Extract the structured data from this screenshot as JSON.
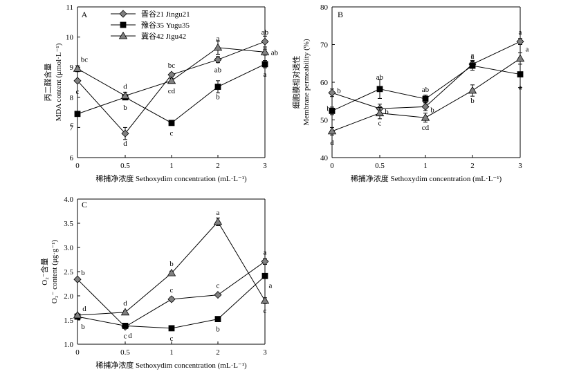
{
  "legend": [
    {
      "label": "晋谷21 Jingu21",
      "marker": "diamond",
      "fill": "#808080"
    },
    {
      "label": "豫谷35 Yugu35",
      "marker": "square",
      "fill": "#000000"
    },
    {
      "label": "冀谷42 Jigu42",
      "marker": "triangle",
      "fill": "#808080"
    }
  ],
  "chart_data": [
    {
      "type": "line",
      "panel": "A",
      "xlabel": "稀捕净浓度 Sethoxydim concentration (mL·L⁻¹)",
      "ylabel_cn": "丙二醛含量",
      "ylabel_en": "MDA content (μmol·L⁻¹)",
      "categories": [
        "0",
        "0.5",
        "1",
        "2",
        "3"
      ],
      "ylim": [
        6,
        11
      ],
      "yticks": [
        "6",
        "7",
        "8",
        "9",
        "10",
        "11"
      ],
      "series": [
        {
          "name": "晋谷21 Jingu21",
          "values": [
            8.55,
            6.8,
            8.75,
            9.25,
            9.85
          ],
          "err": [
            0.05,
            0.2,
            0.06,
            0.1,
            0.18
          ],
          "letters": [
            "c",
            "d",
            "bc",
            "ab",
            "ab"
          ]
        },
        {
          "name": "豫谷35 Yugu35",
          "values": [
            7.45,
            8.0,
            7.15,
            8.35,
            9.1
          ],
          "err": [
            0.06,
            0.07,
            0.08,
            0.2,
            0.12
          ],
          "letters": [
            "c",
            "b",
            "c",
            "b",
            "a"
          ]
        },
        {
          "name": "冀谷42 Jigu42",
          "values": [
            8.95,
            8.05,
            8.55,
            9.65,
            9.5
          ],
          "err": [
            0.1,
            0.12,
            0.08,
            0.22,
            0.1
          ],
          "letters": [
            "bc",
            "d",
            "cd",
            "a",
            "ab"
          ]
        }
      ]
    },
    {
      "type": "line",
      "panel": "B",
      "xlabel": "稀捕净浓度 Sethoxydim concentration (mL·L⁻¹)",
      "ylabel_cn": "细胞膜相对透性",
      "ylabel_en": "Membrane permeability (%)",
      "categories": [
        "0",
        "0.5",
        "1",
        "2",
        "3"
      ],
      "ylim": [
        40,
        80
      ],
      "yticks": [
        "40",
        "50",
        "60",
        "70",
        "80"
      ],
      "series": [
        {
          "name": "晋谷21 Jingu21",
          "values": [
            57.2,
            53.0,
            53.5,
            64.8,
            70.8
          ],
          "err": [
            1.0,
            1.2,
            1.0,
            1.0,
            0.8
          ],
          "letters": [
            "b",
            "b",
            "b",
            "a",
            "a"
          ]
        },
        {
          "name": "豫谷35 Yugu35",
          "values": [
            52.4,
            58.2,
            55.6,
            64.4,
            62.1
          ],
          "err": [
            1.0,
            2.5,
            1.0,
            1.2,
            3.5
          ],
          "letters": [
            "b",
            "ab",
            "ab",
            "a",
            "a"
          ]
        },
        {
          "name": "冀谷42 Jigu42",
          "values": [
            47.0,
            51.8,
            50.6,
            57.8,
            66.3
          ],
          "err": [
            1.0,
            1.5,
            1.2,
            1.5,
            1.5
          ],
          "letters": [
            "d",
            "c",
            "cd",
            "b",
            "a"
          ]
        }
      ]
    },
    {
      "type": "line",
      "panel": "C",
      "xlabel": "稀捕净浓度 Sethoxydim concentration (mL·L⁻¹)",
      "ylabel_cn": "O₂⁻含量",
      "ylabel_en": "O₂⁻ content (μg·g⁻¹)",
      "categories": [
        "0",
        "0.5",
        "1",
        "2",
        "3"
      ],
      "ylim": [
        1.0,
        4.0
      ],
      "yticks": [
        "1.0",
        "1.5",
        "2.0",
        "2.5",
        "3.0",
        "3.5",
        "4.0"
      ],
      "series": [
        {
          "name": "晋谷21 Jingu21",
          "values": [
            2.34,
            1.36,
            1.93,
            2.02,
            2.71
          ],
          "err": [
            0.02,
            0.02,
            0.04,
            0.02,
            0.06
          ],
          "letters": [
            "b",
            "d",
            "c",
            "c",
            "a"
          ]
        },
        {
          "name": "豫谷35 Yugu35",
          "values": [
            1.57,
            1.38,
            1.33,
            1.52,
            2.41
          ],
          "err": [
            0.02,
            0.02,
            0.02,
            0.02,
            0.03
          ],
          "letters": [
            "b",
            "c",
            "c",
            "b",
            "a"
          ]
        },
        {
          "name": "冀谷42 Jigu42",
          "values": [
            1.6,
            1.66,
            2.47,
            3.53,
            1.9
          ],
          "err": [
            0.03,
            0.03,
            0.04,
            0.08,
            0.06
          ],
          "letters": [
            "d",
            "d",
            "b",
            "a",
            "c"
          ]
        }
      ]
    }
  ]
}
